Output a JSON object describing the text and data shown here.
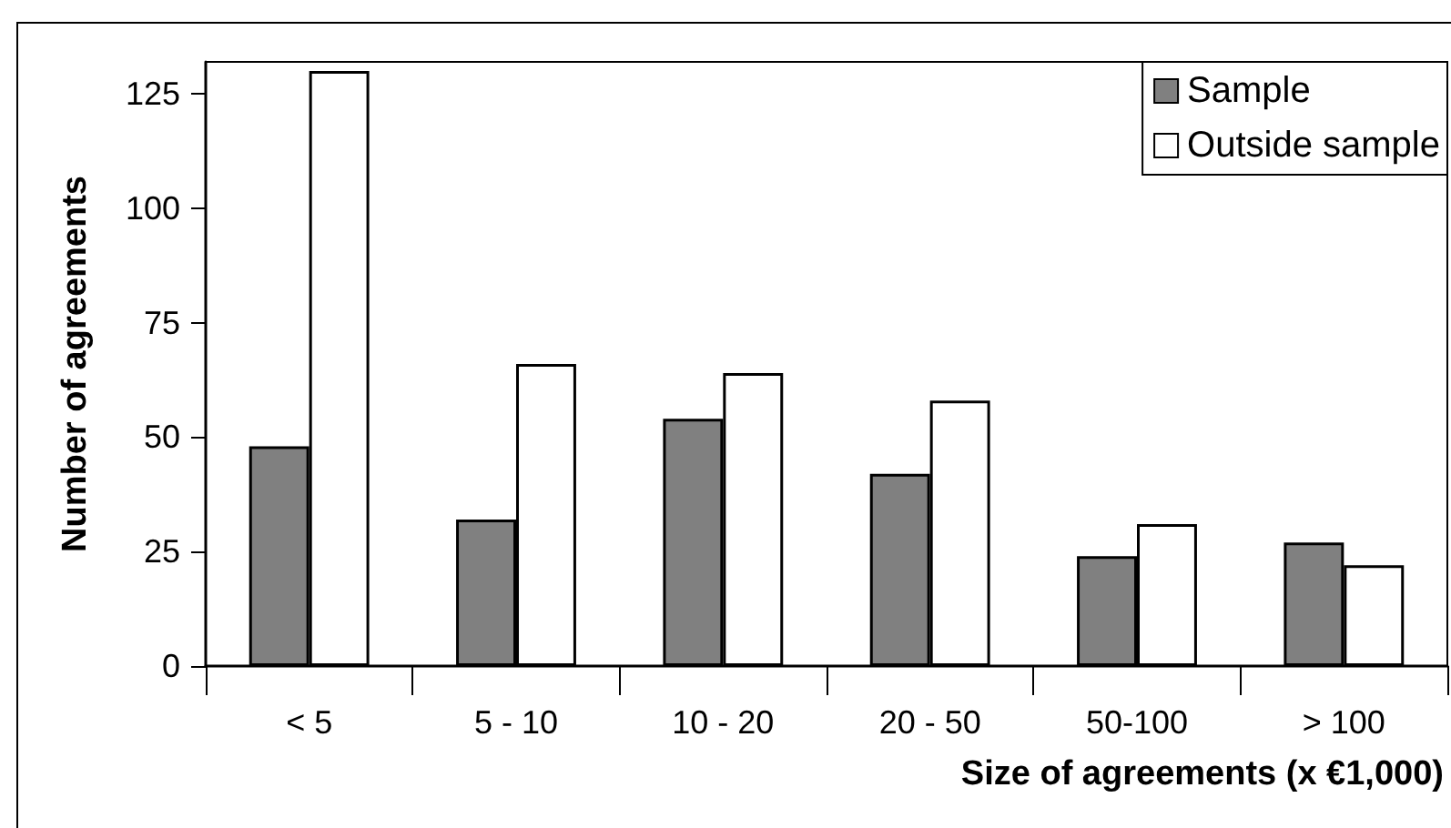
{
  "chart_data": {
    "type": "bar",
    "xlabel": "Size of agreements (x €1,000)",
    "ylabel": "Number of agreements",
    "categories": [
      "< 5",
      "5 - 10",
      "10 - 20",
      "20 - 50",
      "50-100",
      "> 100"
    ],
    "series": [
      {
        "name": "Sample",
        "color": "#808080",
        "values": [
          48,
          32,
          54,
          42,
          24,
          27
        ]
      },
      {
        "name": "Outside sample",
        "color": "#ffffff",
        "values": [
          130,
          66,
          64,
          58,
          31,
          22
        ]
      }
    ],
    "ylim": [
      0,
      132
    ],
    "yticks": [
      0,
      25,
      50,
      75,
      100,
      125
    ],
    "legend": "top right"
  }
}
